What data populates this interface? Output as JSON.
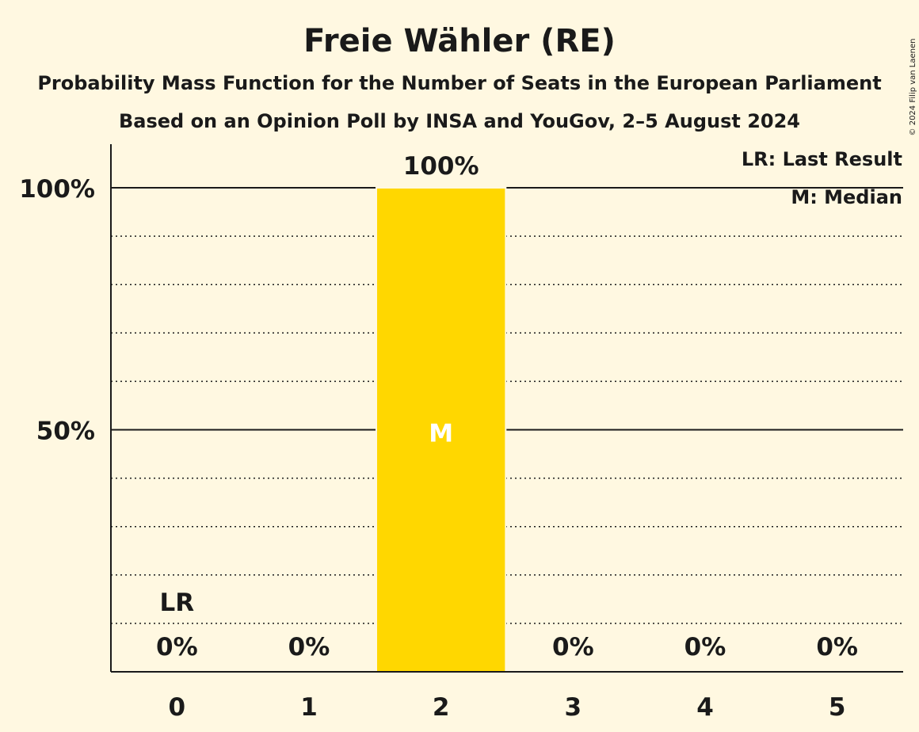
{
  "chart_data": {
    "type": "bar",
    "title": "Freie Wähler (RE)",
    "subtitle": "Probability Mass Function for the Number of Seats in the European Parliament",
    "subtitle2": "Based on an Opinion Poll by INSA and YouGov, 2–5 August 2024",
    "categories": [
      "0",
      "1",
      "2",
      "3",
      "4",
      "5"
    ],
    "values": [
      0,
      0,
      100,
      0,
      0,
      0
    ],
    "value_labels": [
      "0%",
      "0%",
      "100%",
      "0%",
      "0%",
      "0%"
    ],
    "ylim": [
      0,
      100
    ],
    "y_major_ticks": [
      {
        "value": 50,
        "label": "50%"
      },
      {
        "value": 100,
        "label": "100%"
      }
    ],
    "y_minor_ticks": [
      10,
      20,
      30,
      40,
      60,
      70,
      80,
      90
    ],
    "last_result_index": 0,
    "median_index": 2,
    "last_result_marker": "LR",
    "median_marker": "M",
    "legend": [
      "LR: Last Result",
      "M: Median"
    ],
    "legend_position": "top-right",
    "bar_color": "#ffd700",
    "copyright": "© 2024 Filip van Laenen"
  }
}
